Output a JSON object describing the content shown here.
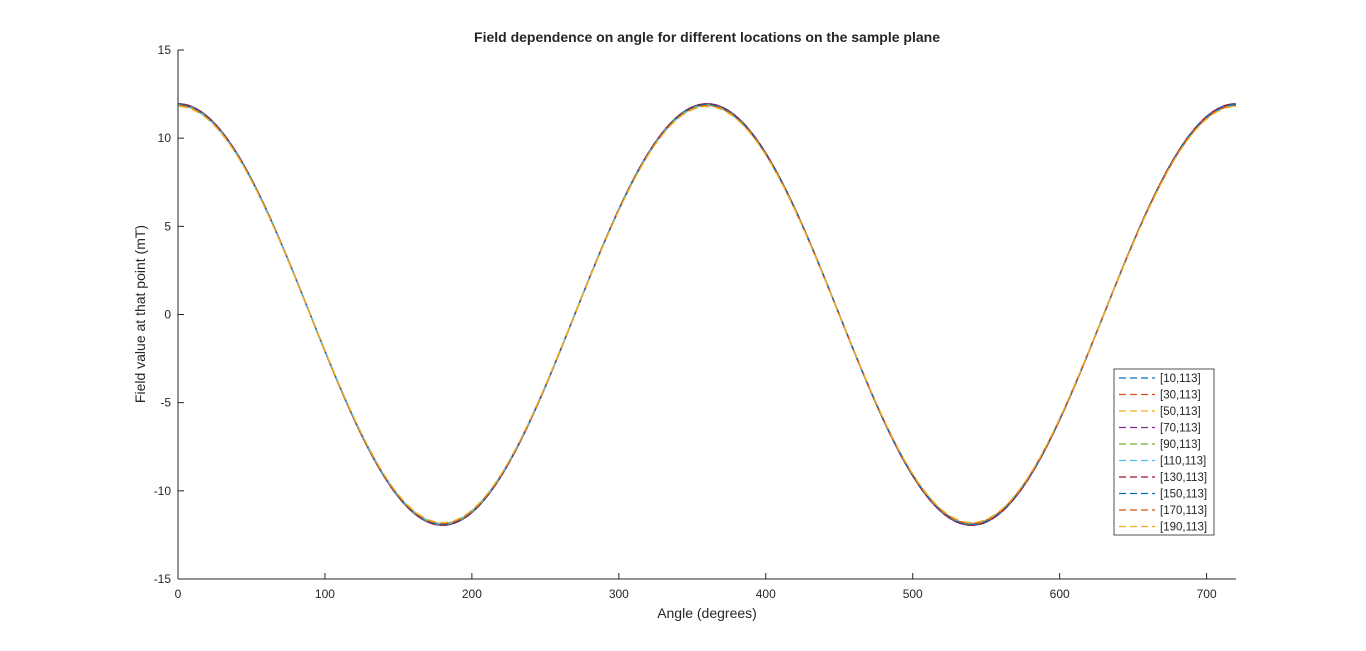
{
  "chart_data": {
    "type": "line",
    "title": "Field dependence on angle for different locations on the sample plane",
    "xlabel": "Angle (degrees)",
    "ylabel": "Field value at that point (mT)",
    "xlim": [
      0,
      720
    ],
    "ylim": [
      -15,
      15
    ],
    "xticks": [
      0,
      100,
      200,
      300,
      400,
      500,
      600,
      700
    ],
    "yticks": [
      -15,
      -10,
      -5,
      0,
      5,
      10,
      15
    ],
    "grid": false,
    "legend_position": "inside-right",
    "line_style": "dashed",
    "curve": "y = amplitude * cos(x in degrees), sampled every 10 degrees",
    "x": [
      0,
      10,
      20,
      30,
      40,
      50,
      60,
      70,
      80,
      90,
      100,
      110,
      120,
      130,
      140,
      150,
      160,
      170,
      180,
      190,
      200,
      210,
      220,
      230,
      240,
      250,
      260,
      270,
      280,
      290,
      300,
      310,
      320,
      330,
      340,
      350,
      360,
      370,
      380,
      390,
      400,
      410,
      420,
      430,
      440,
      450,
      460,
      470,
      480,
      490,
      500,
      510,
      520,
      530,
      540,
      550,
      560,
      570,
      580,
      590,
      600,
      610,
      620,
      630,
      640,
      650,
      660,
      670,
      680,
      690,
      700,
      710,
      720
    ],
    "series": [
      {
        "name": "[10,113]",
        "amplitude": 11.95,
        "color": "#0072BD"
      },
      {
        "name": "[30,113]",
        "amplitude": 11.9,
        "color": "#D95319"
      },
      {
        "name": "[50,113]",
        "amplitude": 11.85,
        "color": "#EDB120"
      },
      {
        "name": "[70,113]",
        "amplitude": 11.95,
        "color": "#7E2F8E"
      },
      {
        "name": "[90,113]",
        "amplitude": 11.9,
        "color": "#77AC30"
      },
      {
        "name": "[110,113]",
        "amplitude": 11.85,
        "color": "#4DBEEE"
      },
      {
        "name": "[130,113]",
        "amplitude": 11.95,
        "color": "#A2142F"
      },
      {
        "name": "[150,113]",
        "amplitude": 11.9,
        "color": "#0072BD"
      },
      {
        "name": "[170,113]",
        "amplitude": 11.85,
        "color": "#D95319"
      },
      {
        "name": "[190,113]",
        "amplitude": 11.8,
        "color": "#EDB120"
      }
    ]
  }
}
